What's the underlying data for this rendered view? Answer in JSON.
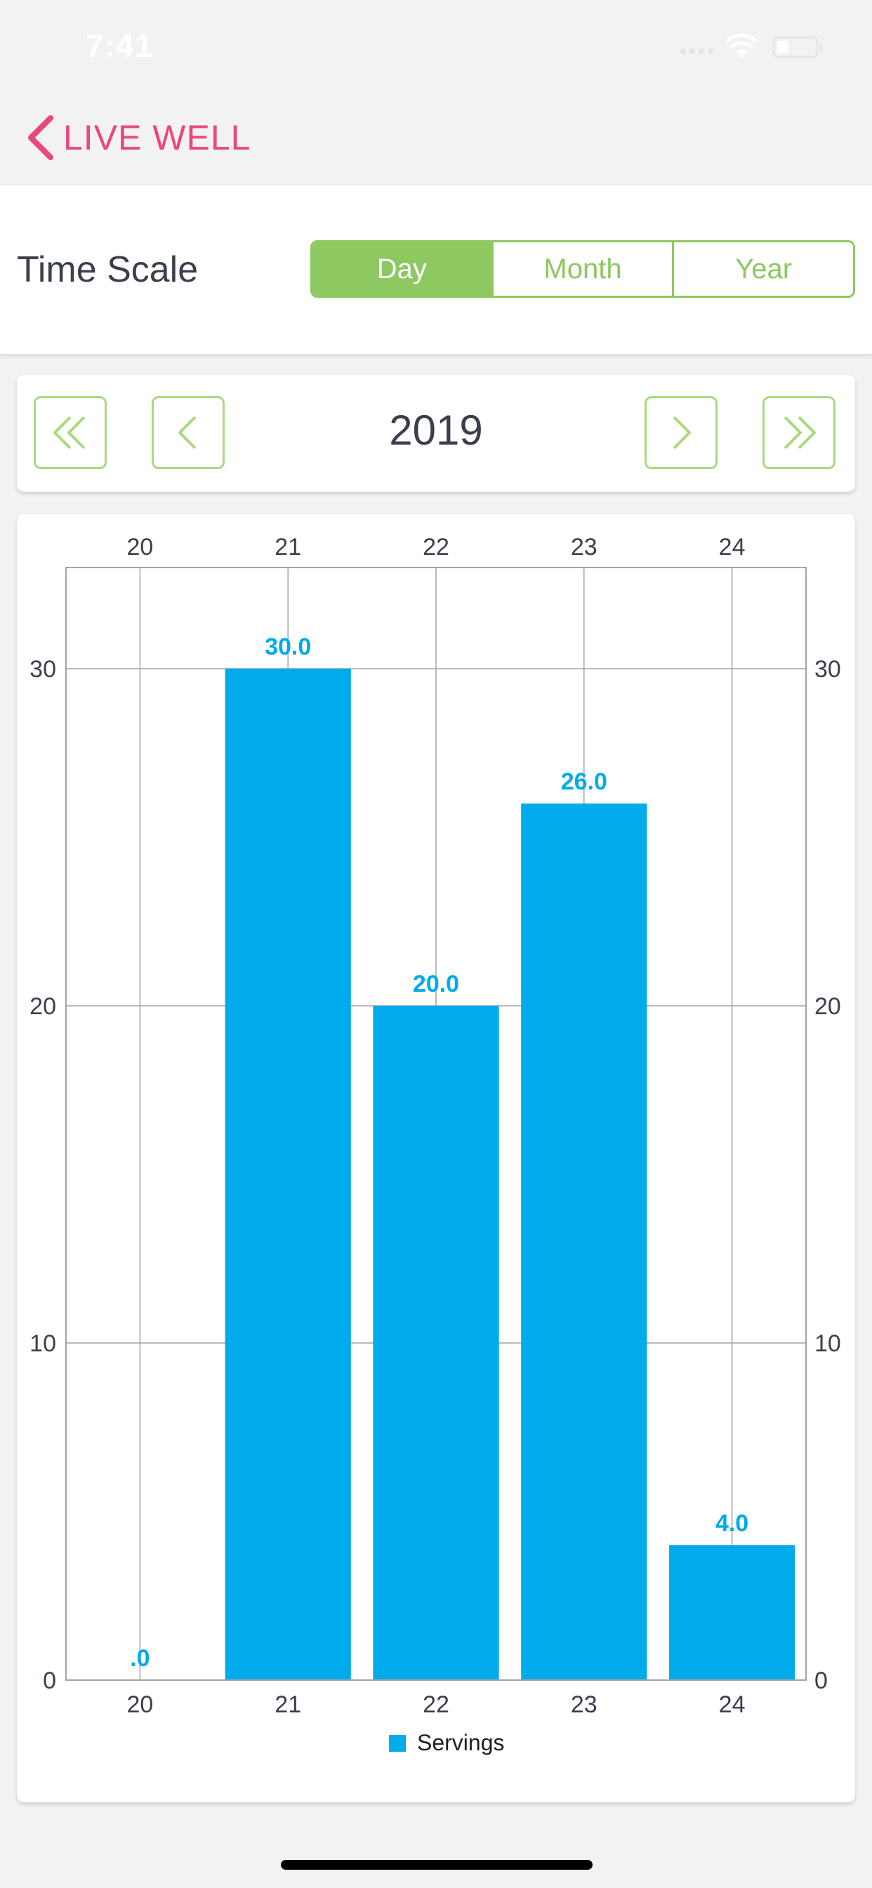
{
  "status_bar": {
    "time": "7:41"
  },
  "nav": {
    "back_label": "LIVE WELL",
    "back_icon": "chevron-left-icon",
    "accent_color": "#e8487a"
  },
  "time_scale": {
    "label": "Time Scale",
    "options": [
      "Day",
      "Month",
      "Year"
    ],
    "selected": "Day",
    "accent_color": "#8dc861"
  },
  "pager": {
    "year": "2019",
    "first_icon": "double-chevron-left-icon",
    "prev_icon": "chevron-left-icon",
    "next_icon": "chevron-right-icon",
    "last_icon": "double-chevron-right-icon"
  },
  "chart_data": {
    "type": "bar",
    "categories": [
      "20",
      "21",
      "22",
      "23",
      "24"
    ],
    "series": [
      {
        "name": "Servings",
        "values": [
          0,
          30,
          20,
          26,
          4
        ],
        "color": "#00aaeb"
      }
    ],
    "data_labels": [
      ".0",
      "30.0",
      "20.0",
      "26.0",
      "4.0"
    ],
    "ylim": [
      0,
      33
    ],
    "yticks": [
      0,
      10,
      20,
      30
    ],
    "grid": true,
    "legend_position": "bottom-center",
    "x_axis_labels_top": true,
    "y_axis_labels_right": true
  }
}
